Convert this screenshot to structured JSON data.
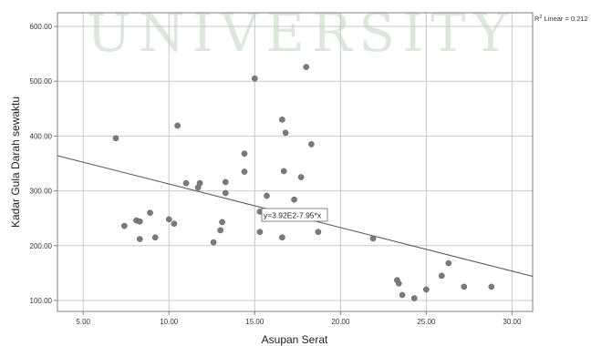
{
  "watermark": "UNIVERSITY",
  "chart_data": {
    "type": "scatter",
    "xlabel": "Asupan Serat",
    "ylabel": "Kadar Gula Darah sewaktu",
    "xlim": [
      3.5,
      31.2
    ],
    "ylim": [
      80,
      625
    ],
    "x_ticks": [
      "5.00",
      "10.00",
      "15.00",
      "20.00",
      "25.00",
      "30.00"
    ],
    "y_ticks": [
      "100.00",
      "200.00",
      "300.00",
      "400.00",
      "500.00",
      "600.00"
    ],
    "grid": true,
    "fit_line": {
      "label": "y=3.92E2-7.95*x",
      "intercept": 392,
      "slope": -7.95
    },
    "r2_label_prefix": "R",
    "r2_label_sup": "2",
    "r2_label_suffix": " Linear = 0.212",
    "points": [
      [
        6.9,
        396
      ],
      [
        7.4,
        236
      ],
      [
        8.1,
        246
      ],
      [
        8.3,
        244
      ],
      [
        8.3,
        212
      ],
      [
        8.9,
        260
      ],
      [
        9.2,
        215
      ],
      [
        10.0,
        248
      ],
      [
        10.3,
        240
      ],
      [
        10.5,
        419
      ],
      [
        11.0,
        314
      ],
      [
        11.7,
        306
      ],
      [
        11.8,
        314
      ],
      [
        12.6,
        206
      ],
      [
        13.0,
        228
      ],
      [
        13.1,
        243
      ],
      [
        13.3,
        296
      ],
      [
        13.3,
        316
      ],
      [
        14.4,
        368
      ],
      [
        14.4,
        335
      ],
      [
        15.0,
        505
      ],
      [
        15.3,
        262
      ],
      [
        15.3,
        225
      ],
      [
        15.7,
        291
      ],
      [
        16.6,
        430
      ],
      [
        16.7,
        336
      ],
      [
        16.8,
        406
      ],
      [
        16.6,
        215
      ],
      [
        17.3,
        284
      ],
      [
        17.7,
        325
      ],
      [
        18.0,
        526
      ],
      [
        18.3,
        385
      ],
      [
        18.7,
        225
      ],
      [
        21.9,
        213
      ],
      [
        23.3,
        137
      ],
      [
        23.4,
        131
      ],
      [
        23.6,
        110
      ],
      [
        24.3,
        104
      ],
      [
        25.0,
        120
      ],
      [
        25.9,
        145
      ],
      [
        26.3,
        168
      ],
      [
        27.2,
        125
      ],
      [
        28.8,
        125
      ]
    ]
  }
}
